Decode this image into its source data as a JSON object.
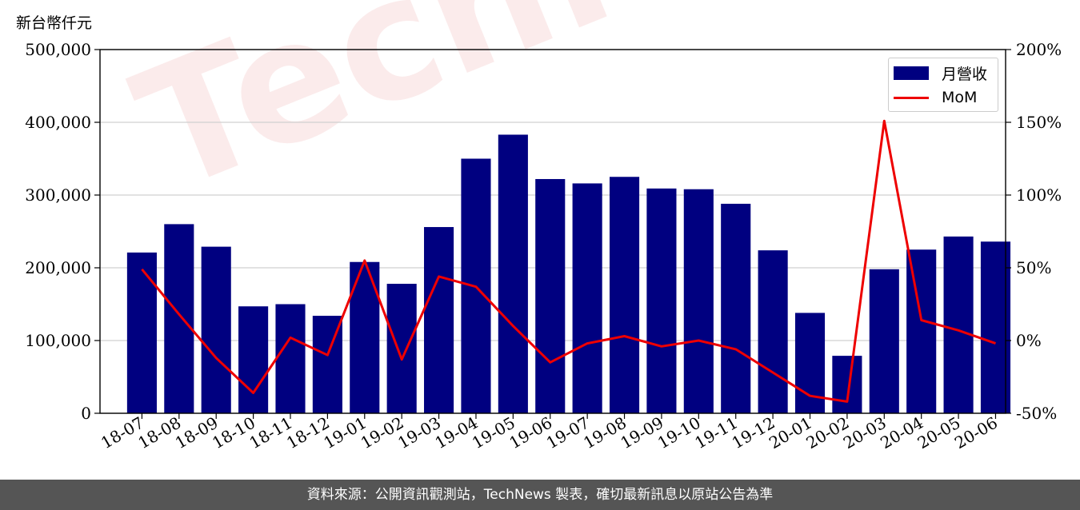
{
  "unit_label": "新台幣仟元",
  "watermark": "TechNews",
  "footer": "資料來源：公開資訊觀測站，TechNews 製表，確切最新訊息以原站公告為準",
  "colors": {
    "bar": "#000080",
    "line": "#ee0000",
    "footer_bg": "#555555"
  },
  "chart_data": {
    "type": "bar",
    "categories": [
      "18-07",
      "18-08",
      "18-09",
      "18-10",
      "18-11",
      "18-12",
      "19-01",
      "19-02",
      "19-03",
      "19-04",
      "19-05",
      "19-06",
      "19-07",
      "19-08",
      "19-09",
      "19-10",
      "19-11",
      "19-12",
      "20-01",
      "20-02",
      "20-03",
      "20-04",
      "20-05",
      "20-06"
    ],
    "series": [
      {
        "name": "月營收",
        "type": "bar",
        "axis": "left",
        "values": [
          221000,
          260000,
          229000,
          147000,
          150000,
          134000,
          208000,
          178000,
          256000,
          350000,
          383000,
          322000,
          316000,
          325000,
          309000,
          308000,
          288000,
          224000,
          138000,
          79000,
          198000,
          225000,
          243000,
          236000
        ]
      },
      {
        "name": "MoM",
        "type": "line",
        "axis": "right",
        "values": [
          49,
          18,
          -12,
          -36,
          2,
          -10,
          55,
          -13,
          44,
          37,
          10,
          -15,
          -2,
          3,
          -4,
          0,
          -6,
          -22,
          -38,
          -42,
          151,
          14,
          7,
          -2
        ]
      }
    ],
    "ylim_left": [
      0,
      500000
    ],
    "yticks_left": [
      "0",
      "100,000",
      "200,000",
      "300,000",
      "400,000",
      "500,000"
    ],
    "ylim_right": [
      -50,
      200
    ],
    "yticks_right": [
      "-50%",
      "0%",
      "50%",
      "100%",
      "150%",
      "200%"
    ],
    "grid": true,
    "legend": "top-right"
  }
}
